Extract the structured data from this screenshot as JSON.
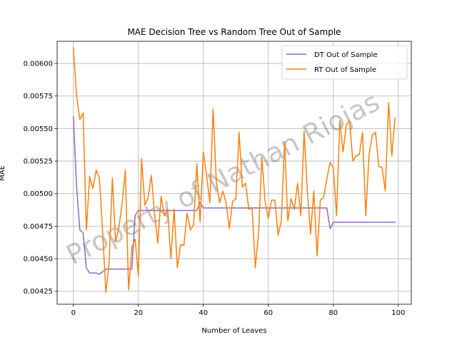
{
  "chart_data": {
    "type": "line",
    "title": "MAE Decision Tree vs Random Tree Out of Sample",
    "xlabel": "Number of Leaves",
    "ylabel": "MAE",
    "xlim": [
      -5,
      104
    ],
    "ylim": [
      0.00415,
      0.00617
    ],
    "xticks": [
      0,
      20,
      40,
      60,
      80,
      100
    ],
    "xtick_labels": [
      "0",
      "20",
      "40",
      "60",
      "80",
      "100"
    ],
    "yticks": [
      0.00425,
      0.0045,
      0.00475,
      0.005,
      0.00525,
      0.0055,
      0.00575,
      0.006
    ],
    "ytick_labels": [
      "0.00425",
      "0.00450",
      "0.00475",
      "0.00500",
      "0.00525",
      "0.00550",
      "0.00575",
      "0.00600"
    ],
    "grid": true,
    "legend_position": "top-right",
    "watermark": "Property of Nathan Riojas",
    "series": [
      {
        "name": "DT Out of Sample",
        "color": "#9467bd",
        "x": [
          0,
          1,
          2,
          3,
          4,
          5,
          6,
          7,
          8,
          9,
          10,
          11,
          12,
          13,
          14,
          15,
          16,
          17,
          18,
          19,
          20,
          21,
          22,
          23,
          24,
          25,
          26,
          27,
          28,
          29,
          30,
          31,
          32,
          33,
          34,
          35,
          36,
          37,
          38,
          39,
          40,
          41,
          42,
          43,
          44,
          45,
          46,
          47,
          48,
          49,
          50,
          51,
          52,
          53,
          54,
          55,
          56,
          57,
          58,
          59,
          60,
          61,
          62,
          63,
          64,
          65,
          66,
          67,
          68,
          69,
          70,
          71,
          72,
          73,
          74,
          75,
          76,
          77,
          78,
          79,
          80,
          81,
          82,
          83,
          84,
          85,
          86,
          87,
          88,
          89,
          90,
          91,
          92,
          93,
          94,
          95,
          96,
          97,
          98,
          99
        ],
        "values": [
          0.00559,
          0.00505,
          0.00472,
          0.0047,
          0.00443,
          0.00439,
          0.00439,
          0.00439,
          0.00438,
          0.0044,
          0.00442,
          0.00442,
          0.00442,
          0.00442,
          0.00442,
          0.00442,
          0.00442,
          0.00442,
          0.00442,
          0.00483,
          0.00487,
          0.00487,
          0.00487,
          0.00487,
          0.00487,
          0.00487,
          0.00487,
          0.00487,
          0.00487,
          0.00487,
          0.00487,
          0.00487,
          0.00487,
          0.00487,
          0.00487,
          0.00487,
          0.00487,
          0.00487,
          0.00487,
          0.00493,
          0.00489,
          0.00489,
          0.00489,
          0.00489,
          0.00489,
          0.00489,
          0.00489,
          0.00489,
          0.00489,
          0.00489,
          0.00489,
          0.00489,
          0.00489,
          0.00489,
          0.00489,
          0.00489,
          0.00489,
          0.00489,
          0.00489,
          0.00489,
          0.00489,
          0.00489,
          0.00489,
          0.00489,
          0.00489,
          0.00489,
          0.00489,
          0.00489,
          0.00489,
          0.00489,
          0.00489,
          0.00489,
          0.00489,
          0.00489,
          0.00489,
          0.00489,
          0.00489,
          0.00489,
          0.00489,
          0.00473,
          0.00478,
          0.00478,
          0.00478,
          0.00478,
          0.00478,
          0.00478,
          0.00478,
          0.00478,
          0.00478,
          0.00478,
          0.00478,
          0.00478,
          0.00478,
          0.00478,
          0.00478,
          0.00478,
          0.00478,
          0.00478,
          0.00478,
          0.00478
        ]
      },
      {
        "name": "RT Out of Sample",
        "color": "#ff7f0e",
        "x": [
          0,
          1,
          2,
          3,
          4,
          5,
          6,
          7,
          8,
          9,
          10,
          11,
          12,
          13,
          14,
          15,
          16,
          17,
          18,
          19,
          20,
          21,
          22,
          23,
          24,
          25,
          26,
          27,
          28,
          29,
          30,
          31,
          32,
          33,
          34,
          35,
          36,
          37,
          38,
          39,
          40,
          41,
          42,
          43,
          44,
          45,
          46,
          47,
          48,
          49,
          50,
          51,
          52,
          53,
          54,
          55,
          56,
          57,
          58,
          59,
          60,
          61,
          62,
          63,
          64,
          65,
          66,
          67,
          68,
          69,
          70,
          71,
          72,
          73,
          74,
          75,
          76,
          77,
          78,
          79,
          80,
          81,
          82,
          83,
          84,
          85,
          86,
          87,
          88,
          89,
          90,
          91,
          92,
          93,
          94,
          95,
          96,
          97,
          98,
          99
        ],
        "values": [
          0.00612,
          0.00575,
          0.00557,
          0.00562,
          0.00472,
          0.00513,
          0.00504,
          0.00518,
          0.00512,
          0.00471,
          0.00424,
          0.00447,
          0.00512,
          0.00463,
          0.00474,
          0.00492,
          0.00518,
          0.00426,
          0.00459,
          0.00465,
          0.00437,
          0.00527,
          0.00491,
          0.00497,
          0.00514,
          0.00484,
          0.00462,
          0.00498,
          0.00483,
          0.00488,
          0.0045,
          0.00488,
          0.00443,
          0.00461,
          0.0046,
          0.00485,
          0.00472,
          0.00476,
          0.00523,
          0.00478,
          0.00532,
          0.00514,
          0.00493,
          0.00565,
          0.00509,
          0.00493,
          0.00502,
          0.00493,
          0.00473,
          0.00494,
          0.00496,
          0.00547,
          0.00505,
          0.00508,
          0.00488,
          0.00489,
          0.00443,
          0.0047,
          0.00528,
          0.00494,
          0.00481,
          0.00495,
          0.00495,
          0.00468,
          0.00479,
          0.0054,
          0.00479,
          0.00496,
          0.00488,
          0.00508,
          0.00483,
          0.00548,
          0.00502,
          0.00469,
          0.00502,
          0.00452,
          0.00495,
          0.00497,
          0.00511,
          0.00524,
          0.0052,
          0.00483,
          0.00556,
          0.00532,
          0.00553,
          0.00556,
          0.00525,
          0.00529,
          0.0053,
          0.00547,
          0.00483,
          0.0053,
          0.00545,
          0.00547,
          0.00521,
          0.0052,
          0.00502,
          0.0057,
          0.00529,
          0.00558
        ]
      }
    ]
  }
}
